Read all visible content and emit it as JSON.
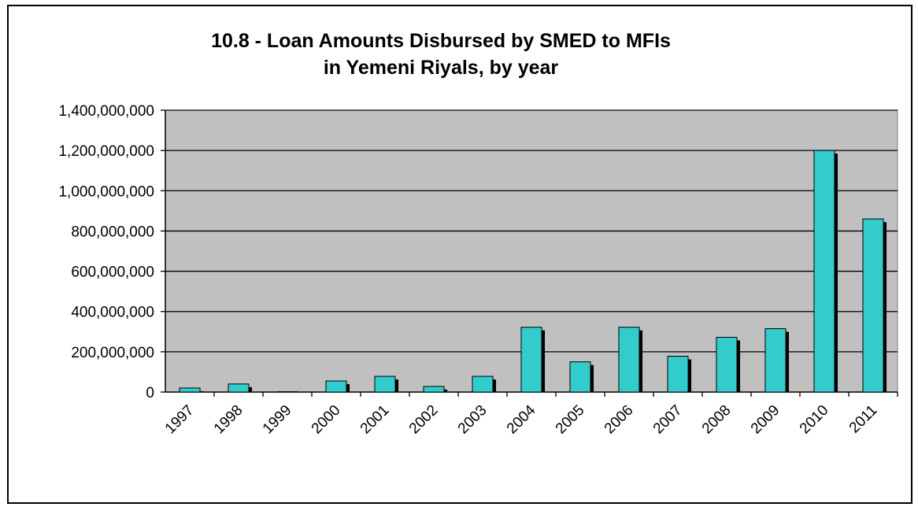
{
  "chart_data": {
    "type": "bar",
    "title_lines": [
      "10.8 - Loan Amounts Disbursed by SMED to MFIs",
      "in Yemeni Riyals, by year"
    ],
    "xlabel": "",
    "ylabel": "",
    "categories": [
      "1997",
      "1998",
      "1999",
      "2000",
      "2001",
      "2002",
      "2003",
      "2004",
      "2005",
      "2006",
      "2007",
      "2008",
      "2009",
      "2010",
      "2011"
    ],
    "values": [
      20000000,
      40000000,
      0,
      55000000,
      78000000,
      28000000,
      78000000,
      322000000,
      150000000,
      322000000,
      178000000,
      272000000,
      315000000,
      1200000000,
      860000000
    ],
    "ylim": [
      0,
      1400000000
    ],
    "y_ticks": [
      0,
      200000000,
      400000000,
      600000000,
      800000000,
      1000000000,
      1200000000,
      1400000000
    ],
    "y_tick_labels": [
      "0",
      "200,000,000",
      "400,000,000",
      "600,000,000",
      "800,000,000",
      "1,000,000,000",
      "1,200,000,000",
      "1,400,000,000"
    ],
    "grid": true,
    "legend": "none",
    "colors": {
      "bar": "#33CCCC",
      "bar_shadow": "#000000",
      "plot_background": "#C0C0C0",
      "grid": "#000000"
    }
  }
}
